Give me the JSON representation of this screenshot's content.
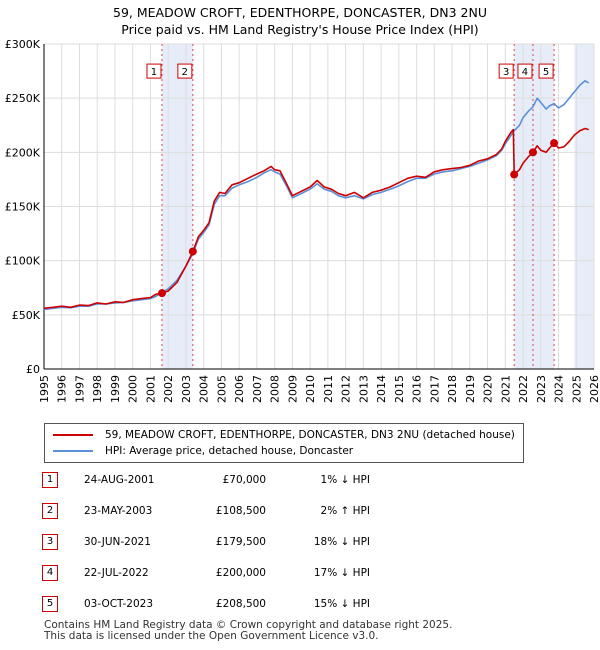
{
  "title_line1": "59, MEADOW CROFT, EDENTHORPE, DONCASTER, DN3 2NU",
  "title_line2": "Price paid vs. HM Land Registry's House Price Index (HPI)",
  "chart_data": {
    "type": "line",
    "xlim": [
      1995,
      2026
    ],
    "ylim": [
      0,
      300000
    ],
    "x_ticks": [
      1995,
      1996,
      1997,
      1998,
      1999,
      2000,
      2001,
      2002,
      2003,
      2004,
      2005,
      2006,
      2007,
      2008,
      2009,
      2010,
      2011,
      2012,
      2013,
      2014,
      2015,
      2016,
      2017,
      2018,
      2019,
      2020,
      2021,
      2022,
      2023,
      2024,
      2025,
      2026
    ],
    "y_ticks": [
      {
        "value": 0,
        "label": "£0"
      },
      {
        "value": 50000,
        "label": "£50K"
      },
      {
        "value": 100000,
        "label": "£100K"
      },
      {
        "value": 150000,
        "label": "£150K"
      },
      {
        "value": 200000,
        "label": "£200K"
      },
      {
        "value": 250000,
        "label": "£250K"
      },
      {
        "value": 300000,
        "label": "£300K"
      }
    ],
    "grid": true,
    "highlight_bands": [
      [
        2001.65,
        2003.39
      ],
      [
        2021.5,
        2023.75
      ],
      [
        2024.9,
        2026
      ]
    ],
    "series": [
      {
        "name": "59, MEADOW CROFT, EDENTHORPE, DONCASTER, DN3 2NU (detached house)",
        "color": "#cc0000",
        "points": [
          [
            1995.0,
            56000
          ],
          [
            1995.5,
            57000
          ],
          [
            1996.0,
            58000
          ],
          [
            1996.5,
            57000
          ],
          [
            1997.0,
            59000
          ],
          [
            1997.5,
            58500
          ],
          [
            1998.0,
            61000
          ],
          [
            1998.5,
            60000
          ],
          [
            1999.0,
            62000
          ],
          [
            1999.5,
            61500
          ],
          [
            2000.0,
            64000
          ],
          [
            2000.5,
            65000
          ],
          [
            2001.0,
            66000
          ],
          [
            2001.3,
            69000
          ],
          [
            2001.65,
            70000
          ],
          [
            2002.0,
            72000
          ],
          [
            2002.5,
            80000
          ],
          [
            2003.0,
            95000
          ],
          [
            2003.39,
            108500
          ],
          [
            2003.7,
            122000
          ],
          [
            2004.0,
            128000
          ],
          [
            2004.3,
            135000
          ],
          [
            2004.6,
            155000
          ],
          [
            2004.9,
            163000
          ],
          [
            2005.2,
            162000
          ],
          [
            2005.6,
            170000
          ],
          [
            2006.0,
            172000
          ],
          [
            2006.5,
            176000
          ],
          [
            2007.0,
            180000
          ],
          [
            2007.4,
            183000
          ],
          [
            2007.8,
            187000
          ],
          [
            2008.0,
            184000
          ],
          [
            2008.3,
            183000
          ],
          [
            2008.7,
            170000
          ],
          [
            2009.0,
            160000
          ],
          [
            2009.5,
            164000
          ],
          [
            2010.0,
            168000
          ],
          [
            2010.4,
            174000
          ],
          [
            2010.8,
            168000
          ],
          [
            2011.2,
            166000
          ],
          [
            2011.6,
            162000
          ],
          [
            2012.0,
            160000
          ],
          [
            2012.5,
            163000
          ],
          [
            2013.0,
            158000
          ],
          [
            2013.5,
            163000
          ],
          [
            2014.0,
            165000
          ],
          [
            2014.5,
            168000
          ],
          [
            2015.0,
            172000
          ],
          [
            2015.5,
            176000
          ],
          [
            2016.0,
            178000
          ],
          [
            2016.5,
            177000
          ],
          [
            2017.0,
            182000
          ],
          [
            2017.5,
            184000
          ],
          [
            2018.0,
            185000
          ],
          [
            2018.5,
            186000
          ],
          [
            2019.0,
            188000
          ],
          [
            2019.5,
            192000
          ],
          [
            2020.0,
            194000
          ],
          [
            2020.5,
            198000
          ],
          [
            2020.8,
            203000
          ],
          [
            2021.0,
            210000
          ],
          [
            2021.3,
            218000
          ],
          [
            2021.45,
            221000
          ],
          [
            2021.5,
            179500
          ],
          [
            2021.8,
            184000
          ],
          [
            2022.0,
            190000
          ],
          [
            2022.3,
            196000
          ],
          [
            2022.56,
            200000
          ],
          [
            2022.8,
            206000
          ],
          [
            2023.0,
            202000
          ],
          [
            2023.3,
            200000
          ],
          [
            2023.5,
            204000
          ],
          [
            2023.75,
            208500
          ],
          [
            2024.0,
            204000
          ],
          [
            2024.3,
            205000
          ],
          [
            2024.6,
            210000
          ],
          [
            2024.9,
            216000
          ],
          [
            2025.2,
            220000
          ],
          [
            2025.5,
            222000
          ],
          [
            2025.7,
            221000
          ]
        ]
      },
      {
        "name": "HPI: Average price, detached house, Doncaster",
        "color": "#5b8fd9",
        "points": [
          [
            1995.0,
            55000
          ],
          [
            1995.5,
            56000
          ],
          [
            1996.0,
            57000
          ],
          [
            1996.5,
            56500
          ],
          [
            1997.0,
            58000
          ],
          [
            1997.5,
            58000
          ],
          [
            1998.0,
            60000
          ],
          [
            1998.5,
            60000
          ],
          [
            1999.0,
            61000
          ],
          [
            1999.5,
            61500
          ],
          [
            2000.0,
            63000
          ],
          [
            2000.5,
            64000
          ],
          [
            2001.0,
            65000
          ],
          [
            2001.3,
            67000
          ],
          [
            2001.65,
            70500
          ],
          [
            2002.0,
            74000
          ],
          [
            2002.5,
            82000
          ],
          [
            2003.0,
            95000
          ],
          [
            2003.39,
            106500
          ],
          [
            2003.7,
            120000
          ],
          [
            2004.0,
            126000
          ],
          [
            2004.3,
            133000
          ],
          [
            2004.6,
            152000
          ],
          [
            2004.9,
            160000
          ],
          [
            2005.2,
            160000
          ],
          [
            2005.6,
            167000
          ],
          [
            2006.0,
            170000
          ],
          [
            2006.5,
            173000
          ],
          [
            2007.0,
            177000
          ],
          [
            2007.4,
            181000
          ],
          [
            2007.8,
            184000
          ],
          [
            2008.0,
            182000
          ],
          [
            2008.3,
            180000
          ],
          [
            2008.7,
            168000
          ],
          [
            2009.0,
            158000
          ],
          [
            2009.5,
            162000
          ],
          [
            2010.0,
            166000
          ],
          [
            2010.4,
            171000
          ],
          [
            2010.8,
            166000
          ],
          [
            2011.2,
            164000
          ],
          [
            2011.6,
            160000
          ],
          [
            2012.0,
            158000
          ],
          [
            2012.5,
            160000
          ],
          [
            2013.0,
            157000
          ],
          [
            2013.5,
            161000
          ],
          [
            2014.0,
            163000
          ],
          [
            2014.5,
            166000
          ],
          [
            2015.0,
            169000
          ],
          [
            2015.5,
            173000
          ],
          [
            2016.0,
            176000
          ],
          [
            2016.5,
            176000
          ],
          [
            2017.0,
            180000
          ],
          [
            2017.5,
            182000
          ],
          [
            2018.0,
            183000
          ],
          [
            2018.5,
            185000
          ],
          [
            2019.0,
            187000
          ],
          [
            2019.5,
            190000
          ],
          [
            2020.0,
            193000
          ],
          [
            2020.5,
            197000
          ],
          [
            2020.8,
            202000
          ],
          [
            2021.0,
            208000
          ],
          [
            2021.3,
            215000
          ],
          [
            2021.5,
            220000
          ],
          [
            2021.8,
            225000
          ],
          [
            2022.0,
            232000
          ],
          [
            2022.3,
            238000
          ],
          [
            2022.56,
            242000
          ],
          [
            2022.8,
            250000
          ],
          [
            2023.0,
            246000
          ],
          [
            2023.3,
            240000
          ],
          [
            2023.5,
            243000
          ],
          [
            2023.75,
            245000
          ],
          [
            2024.0,
            241000
          ],
          [
            2024.3,
            244000
          ],
          [
            2024.6,
            250000
          ],
          [
            2024.9,
            256000
          ],
          [
            2025.2,
            262000
          ],
          [
            2025.5,
            266000
          ],
          [
            2025.7,
            264000
          ]
        ]
      }
    ],
    "sale_markers": [
      {
        "id": "1",
        "x": 2001.65,
        "y": 70000
      },
      {
        "id": "2",
        "x": 2003.39,
        "y": 108500
      },
      {
        "id": "3",
        "x": 2021.5,
        "y": 179500
      },
      {
        "id": "4",
        "x": 2022.56,
        "y": 200000
      },
      {
        "id": "5",
        "x": 2023.75,
        "y": 208500
      }
    ],
    "marker_labels_value": 275000
  },
  "legend": {
    "property_label": "59, MEADOW CROFT, EDENTHORPE, DONCASTER, DN3 2NU (detached house)",
    "hpi_label": "HPI: Average price, detached house, Doncaster",
    "property_color": "#cc0000",
    "hpi_color": "#5b8fd9"
  },
  "sales": [
    {
      "num": "1",
      "date": "24-AUG-2001",
      "price": "£70,000",
      "hpi": "1% ↓ HPI"
    },
    {
      "num": "2",
      "date": "23-MAY-2003",
      "price": "£108,500",
      "hpi": "2% ↑ HPI"
    },
    {
      "num": "3",
      "date": "30-JUN-2021",
      "price": "£179,500",
      "hpi": "18% ↓ HPI"
    },
    {
      "num": "4",
      "date": "22-JUL-2022",
      "price": "£200,000",
      "hpi": "17% ↓ HPI"
    },
    {
      "num": "5",
      "date": "03-OCT-2023",
      "price": "£208,500",
      "hpi": "15% ↓ HPI"
    }
  ],
  "footer_line1": "Contains HM Land Registry data © Crown copyright and database right 2025.",
  "footer_line2": "This data is licensed under the Open Government Licence v3.0."
}
